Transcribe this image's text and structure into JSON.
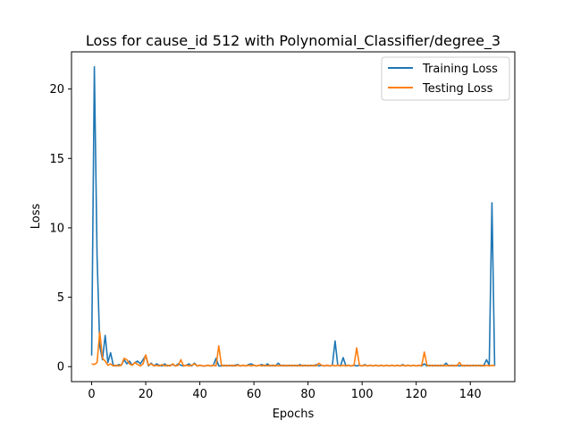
{
  "chart_data": {
    "type": "line",
    "title": "Loss for cause_id 512 with Polynomial_Classifier/degree_3",
    "xlabel": "Epochs",
    "ylabel": "Loss",
    "xlim": [
      -7.45,
      156.45
    ],
    "ylim": [
      -1.08,
      22.68
    ],
    "xticks": [
      0,
      20,
      40,
      60,
      80,
      100,
      120,
      140
    ],
    "yticks": [
      0,
      5,
      10,
      15,
      20
    ],
    "grid": false,
    "legend_position": "top-right",
    "series": [
      {
        "name": "Training Loss",
        "color": "#1f77b4",
        "x": [
          0,
          1,
          2,
          3,
          4,
          5,
          6,
          7,
          8,
          9,
          10,
          11,
          12,
          13,
          14,
          15,
          16,
          17,
          18,
          19,
          20,
          21,
          22,
          23,
          24,
          25,
          26,
          27,
          28,
          29,
          30,
          31,
          32,
          33,
          34,
          35,
          36,
          37,
          38,
          39,
          40,
          41,
          42,
          43,
          44,
          45,
          46,
          47,
          48,
          49,
          50,
          51,
          52,
          53,
          54,
          55,
          56,
          57,
          58,
          59,
          60,
          61,
          62,
          63,
          64,
          65,
          66,
          67,
          68,
          69,
          70,
          71,
          72,
          73,
          74,
          75,
          76,
          77,
          78,
          79,
          80,
          81,
          82,
          83,
          84,
          85,
          86,
          87,
          88,
          89,
          90,
          91,
          92,
          93,
          94,
          95,
          96,
          97,
          98,
          99,
          100,
          101,
          102,
          103,
          104,
          105,
          106,
          107,
          108,
          109,
          110,
          111,
          112,
          113,
          114,
          115,
          116,
          117,
          118,
          119,
          120,
          121,
          122,
          123,
          124,
          125,
          126,
          127,
          128,
          129,
          130,
          131,
          132,
          133,
          134,
          135,
          136,
          137,
          138,
          139,
          140,
          141,
          142,
          143,
          144,
          145,
          146,
          147,
          148,
          149
        ],
        "values": [
          0.8,
          21.6,
          8.0,
          1.5,
          0.5,
          2.25,
          0.3,
          1.0,
          0.1,
          0.05,
          0.15,
          0.1,
          0.5,
          0.2,
          0.4,
          0.1,
          0.3,
          0.4,
          0.2,
          0.5,
          0.8,
          0.05,
          0.25,
          0.05,
          0.2,
          0.1,
          0.05,
          0.2,
          0.05,
          0.1,
          0.15,
          0.05,
          0.2,
          0.1,
          0.05,
          0.1,
          0.2,
          0.05,
          0.25,
          0.05,
          0.1,
          0.05,
          0.05,
          0.1,
          0.05,
          0.1,
          0.6,
          0.05,
          0.05,
          0.1,
          0.05,
          0.1,
          0.05,
          0.1,
          0.15,
          0.05,
          0.1,
          0.05,
          0.15,
          0.2,
          0.1,
          0.05,
          0.1,
          0.15,
          0.05,
          0.2,
          0.05,
          0.1,
          0.05,
          0.25,
          0.05,
          0.1,
          0.05,
          0.1,
          0.05,
          0.1,
          0.05,
          0.15,
          0.05,
          0.1,
          0.05,
          0.1,
          0.05,
          0.15,
          0.05,
          0.1,
          0.05,
          0.1,
          0.05,
          0.1,
          1.85,
          0.1,
          0.05,
          0.65,
          0.05,
          0.1,
          0.05,
          0.1,
          0.05,
          0.1,
          0.05,
          0.15,
          0.05,
          0.1,
          0.05,
          0.1,
          0.05,
          0.1,
          0.05,
          0.1,
          0.05,
          0.1,
          0.05,
          0.1,
          0.05,
          0.15,
          0.05,
          0.1,
          0.05,
          0.1,
          0.05,
          0.1,
          0.05,
          0.2,
          0.05,
          0.1,
          0.05,
          0.1,
          0.05,
          0.1,
          0.05,
          0.25,
          0.05,
          0.1,
          0.05,
          0.1,
          0.05,
          0.1,
          0.05,
          0.1,
          0.05,
          0.1,
          0.05,
          0.1,
          0.05,
          0.1,
          0.5,
          0.1,
          11.8,
          0.05
        ]
      },
      {
        "name": "Testing Loss",
        "color": "#ff7f0e",
        "x": [
          0,
          1,
          2,
          3,
          4,
          5,
          6,
          7,
          8,
          9,
          10,
          11,
          12,
          13,
          14,
          15,
          16,
          17,
          18,
          19,
          20,
          21,
          22,
          23,
          24,
          25,
          26,
          27,
          28,
          29,
          30,
          31,
          32,
          33,
          34,
          35,
          36,
          37,
          38,
          39,
          40,
          41,
          42,
          43,
          44,
          45,
          46,
          47,
          48,
          49,
          50,
          51,
          52,
          53,
          54,
          55,
          56,
          57,
          58,
          59,
          60,
          61,
          62,
          63,
          64,
          65,
          66,
          67,
          68,
          69,
          70,
          71,
          72,
          73,
          74,
          75,
          76,
          77,
          78,
          79,
          80,
          81,
          82,
          83,
          84,
          85,
          86,
          87,
          88,
          89,
          90,
          91,
          92,
          93,
          94,
          95,
          96,
          97,
          98,
          99,
          100,
          101,
          102,
          103,
          104,
          105,
          106,
          107,
          108,
          109,
          110,
          111,
          112,
          113,
          114,
          115,
          116,
          117,
          118,
          119,
          120,
          121,
          122,
          123,
          124,
          125,
          126,
          127,
          128,
          129,
          130,
          131,
          132,
          133,
          134,
          135,
          136,
          137,
          138,
          139,
          140,
          141,
          142,
          143,
          144,
          145,
          146,
          147,
          148,
          149
        ],
        "values": [
          0.2,
          0.15,
          0.3,
          2.5,
          0.6,
          0.4,
          0.1,
          0.2,
          0.05,
          0.1,
          0.05,
          0.1,
          0.6,
          0.5,
          0.2,
          0.1,
          0.3,
          0.15,
          0.05,
          0.2,
          0.85,
          0.1,
          0.2,
          0.05,
          0.1,
          0.05,
          0.15,
          0.05,
          0.1,
          0.05,
          0.2,
          0.05,
          0.1,
          0.5,
          0.05,
          0.1,
          0.05,
          0.1,
          0.2,
          0.05,
          0.1,
          0.05,
          0.05,
          0.1,
          0.05,
          0.1,
          0.05,
          1.5,
          0.1,
          0.05,
          0.1,
          0.05,
          0.1,
          0.05,
          0.1,
          0.05,
          0.1,
          0.05,
          0.1,
          0.05,
          0.1,
          0.05,
          0.1,
          0.05,
          0.1,
          0.05,
          0.1,
          0.05,
          0.1,
          0.05,
          0.1,
          0.05,
          0.1,
          0.05,
          0.1,
          0.05,
          0.1,
          0.05,
          0.1,
          0.05,
          0.1,
          0.05,
          0.1,
          0.05,
          0.25,
          0.1,
          0.05,
          0.1,
          0.05,
          0.1,
          0.05,
          0.1,
          0.05,
          0.1,
          0.05,
          0.1,
          0.05,
          0.1,
          1.35,
          0.1,
          0.05,
          0.1,
          0.05,
          0.1,
          0.05,
          0.1,
          0.05,
          0.1,
          0.05,
          0.1,
          0.05,
          0.1,
          0.05,
          0.1,
          0.05,
          0.1,
          0.05,
          0.1,
          0.05,
          0.1,
          0.05,
          0.1,
          0.05,
          1.05,
          0.1,
          0.05,
          0.1,
          0.05,
          0.1,
          0.05,
          0.1,
          0.05,
          0.1,
          0.05,
          0.1,
          0.05,
          0.3,
          0.05,
          0.1,
          0.05,
          0.1,
          0.05,
          0.1,
          0.05,
          0.1,
          0.05,
          0.1,
          0.05,
          0.1,
          0.05
        ]
      }
    ]
  }
}
